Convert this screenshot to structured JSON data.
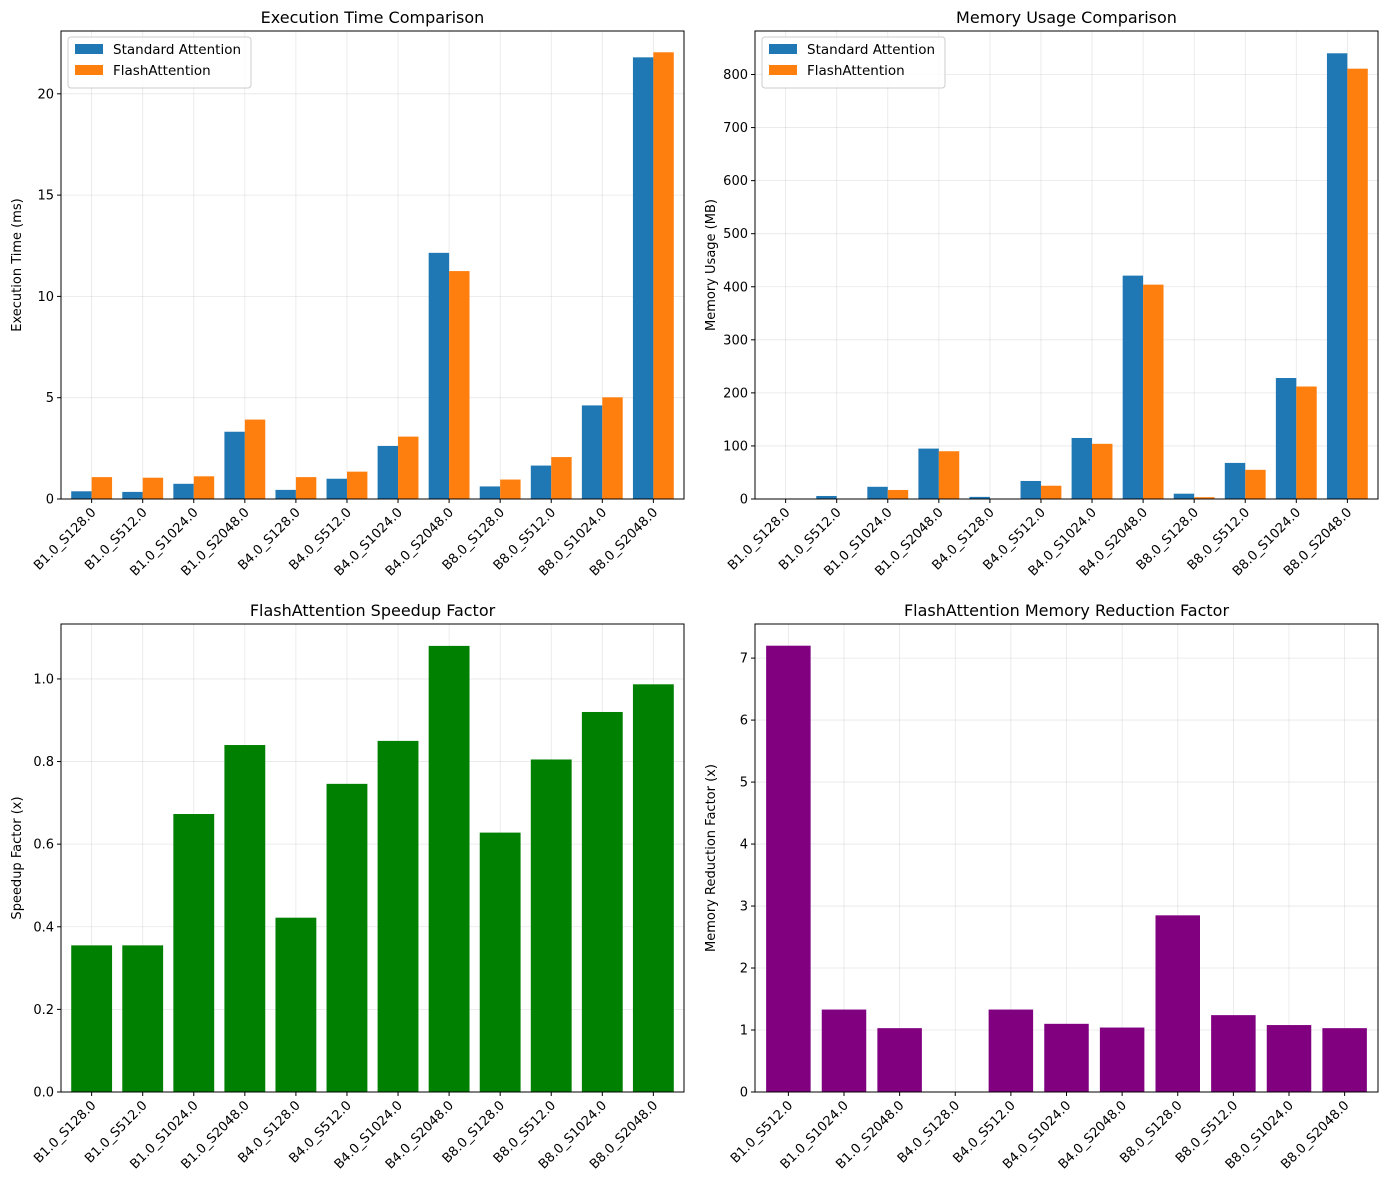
{
  "chart_data": [
    {
      "type": "bar",
      "title": "Execution Time Comparison",
      "xlabel": "",
      "ylabel": "Execution Time (ms)",
      "ylim": [
        0,
        23.1
      ],
      "yticks": [
        0,
        5,
        10,
        15,
        20
      ],
      "grid": true,
      "legend": "top-left",
      "categories": [
        "B1.0_S128.0",
        "B1.0_S512.0",
        "B1.0_S1024.0",
        "B1.0_S2048.0",
        "B4.0_S128.0",
        "B4.0_S512.0",
        "B4.0_S1024.0",
        "B4.0_S2048.0",
        "B8.0_S128.0",
        "B8.0_S512.0",
        "B8.0_S1024.0",
        "B8.0_S2048.0"
      ],
      "series": [
        {
          "name": "Standard Attention",
          "color": "#1f77b4",
          "values": [
            0.38,
            0.35,
            0.75,
            3.32,
            0.45,
            1.0,
            2.62,
            12.15,
            0.62,
            1.65,
            4.62,
            21.8
          ]
        },
        {
          "name": "FlashAttention",
          "color": "#ff7f0e",
          "values": [
            1.08,
            1.05,
            1.12,
            3.92,
            1.08,
            1.35,
            3.08,
            11.25,
            0.96,
            2.07,
            5.02,
            22.05
          ]
        }
      ]
    },
    {
      "type": "bar",
      "title": "Memory Usage Comparison",
      "xlabel": "",
      "ylabel": "Memory Usage (MB)",
      "ylim": [
        0,
        882
      ],
      "yticks": [
        0,
        100,
        200,
        300,
        400,
        500,
        600,
        700,
        800
      ],
      "grid": true,
      "legend": "top-left",
      "categories": [
        "B1.0_S128.0",
        "B1.0_S512.0",
        "B1.0_S1024.0",
        "B1.0_S2048.0",
        "B4.0_S128.0",
        "B4.0_S512.0",
        "B4.0_S1024.0",
        "B4.0_S2048.0",
        "B8.0_S128.0",
        "B8.0_S512.0",
        "B8.0_S1024.0",
        "B8.0_S2048.0"
      ],
      "series": [
        {
          "name": "Standard Attention",
          "color": "#1f77b4",
          "values": [
            0,
            5.7,
            23,
            95,
            4,
            34,
            115,
            421,
            10,
            68,
            228,
            840
          ]
        },
        {
          "name": "FlashAttention",
          "color": "#ff7f0e",
          "values": [
            0,
            0.8,
            17,
            90,
            0,
            25,
            104,
            404,
            3.4,
            55,
            212,
            811
          ]
        }
      ]
    },
    {
      "type": "bar",
      "title": "FlashAttention Speedup Factor",
      "xlabel": "",
      "ylabel": "Speedup Factor (x)",
      "ylim": [
        0,
        1.133
      ],
      "yticks": [
        0.0,
        0.2,
        0.4,
        0.6,
        0.8,
        1.0
      ],
      "grid": true,
      "categories": [
        "B1.0_S128.0",
        "B1.0_S512.0",
        "B1.0_S1024.0",
        "B1.0_S2048.0",
        "B4.0_S128.0",
        "B4.0_S512.0",
        "B4.0_S1024.0",
        "B4.0_S2048.0",
        "B8.0_S128.0",
        "B8.0_S512.0",
        "B8.0_S1024.0",
        "B8.0_S2048.0"
      ],
      "series": [
        {
          "color": "#008000",
          "values": [
            0.355,
            0.355,
            0.673,
            0.84,
            0.422,
            0.746,
            0.85,
            1.08,
            0.628,
            0.805,
            0.92,
            0.987
          ]
        }
      ]
    },
    {
      "type": "bar",
      "title": "FlashAttention Memory Reduction Factor",
      "xlabel": "",
      "ylabel": "Memory Reduction Factor (x)",
      "ylim": [
        0,
        7.55
      ],
      "yticks": [
        0,
        1,
        2,
        3,
        4,
        5,
        6,
        7
      ],
      "grid": true,
      "categories": [
        "B1.0_S512.0",
        "B1.0_S1024.0",
        "B1.0_S2048.0",
        "B4.0_S128.0",
        "B4.0_S512.0",
        "B4.0_S1024.0",
        "B4.0_S2048.0",
        "B8.0_S128.0",
        "B8.0_S512.0",
        "B8.0_S1024.0",
        "B8.0_S2048.0"
      ],
      "series": [
        {
          "color": "#800080",
          "values": [
            7.2,
            1.33,
            1.03,
            0,
            1.33,
            1.1,
            1.04,
            2.85,
            1.24,
            1.08,
            1.03
          ]
        }
      ]
    }
  ]
}
